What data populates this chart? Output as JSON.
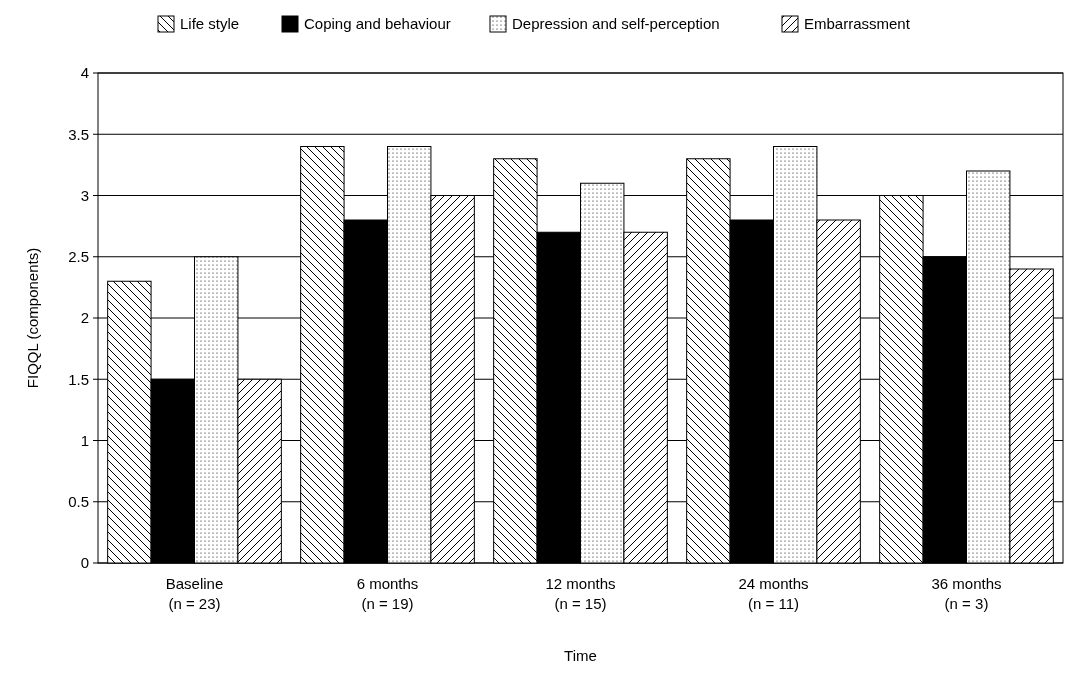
{
  "chart_data": {
    "type": "bar",
    "xlabel": "Time",
    "ylabel": "FIQQL (components)",
    "categories": [
      "Baseline\n(n = 23)",
      "6 months\n(n = 19)",
      "12 months\n(n = 15)",
      "24 months\n(n = 11)",
      "36 months\n(n = 3)"
    ],
    "series": [
      {
        "name": "Life style",
        "color": "#000000",
        "values": [
          2.3,
          3.4,
          3.3,
          3.3,
          3.0
        ]
      },
      {
        "name": "Coping and behaviour",
        "color": "#000000",
        "values": [
          1.5,
          2.8,
          2.7,
          2.8,
          2.5
        ]
      },
      {
        "name": "Depression and self-perception",
        "color": "#000000",
        "values": [
          2.5,
          3.4,
          3.1,
          3.4,
          3.2
        ]
      },
      {
        "name": "Embarrassment",
        "color": "#000000",
        "values": [
          1.5,
          3.0,
          2.7,
          2.8,
          2.4
        ]
      }
    ],
    "ylim": [
      0,
      4
    ],
    "yticks": [
      0,
      0.5,
      1,
      1.5,
      2,
      2.5,
      3,
      3.5,
      4
    ],
    "grid": "y",
    "legend": "top"
  }
}
